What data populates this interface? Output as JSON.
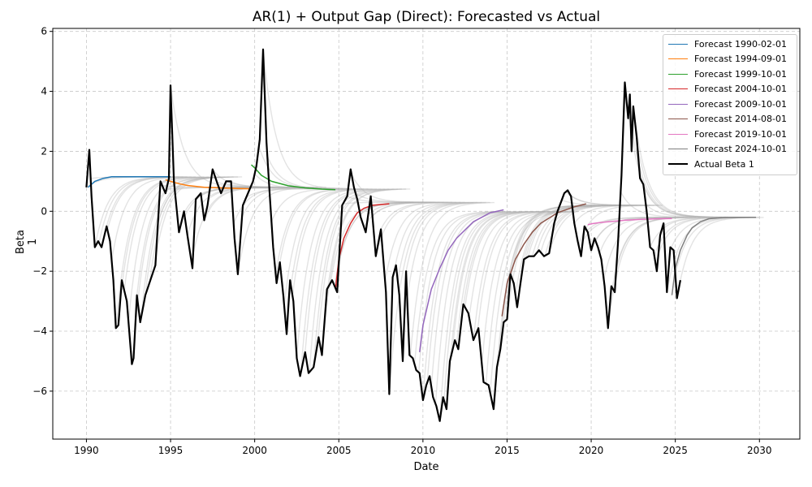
{
  "chart_data": {
    "type": "line",
    "title": "AR(1) + Output Gap (Direct): Forecasted vs Actual",
    "xlabel": "Date",
    "ylabel": "Beta 1",
    "xlim": [
      1988.0,
      2032.4
    ],
    "ylim": [
      -7.6,
      6.1
    ],
    "x_ticks": [
      1990,
      1995,
      2000,
      2005,
      2010,
      2015,
      2020,
      2025,
      2030
    ],
    "y_ticks": [
      -6,
      -4,
      -2,
      0,
      2,
      4,
      6
    ],
    "grid": true,
    "legend_position": "top-right",
    "series": [
      {
        "name": "Actual Beta 1",
        "color": "#000000",
        "x": [
          1990.0,
          1990.17,
          1990.3,
          1990.5,
          1990.7,
          1990.9,
          1991.2,
          1991.4,
          1991.6,
          1991.75,
          1991.9,
          1992.1,
          1992.4,
          1992.7,
          1992.8,
          1993.0,
          1993.2,
          1993.5,
          1993.8,
          1994.1,
          1994.4,
          1994.7,
          1994.9,
          1995.0,
          1995.2,
          1995.5,
          1995.8,
          1996.0,
          1996.3,
          1996.5,
          1996.8,
          1997.0,
          1997.2,
          1997.5,
          1997.8,
          1998.0,
          1998.3,
          1998.6,
          1998.8,
          1999.0,
          1999.3,
          1999.6,
          1999.9,
          2000.1,
          2000.3,
          2000.5,
          2000.7,
          2000.9,
          2001.1,
          2001.3,
          2001.5,
          2001.7,
          2001.9,
          2002.1,
          2002.3,
          2002.5,
          2002.7,
          2003.0,
          2003.2,
          2003.5,
          2003.8,
          2004.0,
          2004.3,
          2004.6,
          2004.9,
          2005.2,
          2005.5,
          2005.7,
          2005.9,
          2006.1,
          2006.3,
          2006.6,
          2006.9,
          2007.2,
          2007.5,
          2007.8,
          2008.0,
          2008.2,
          2008.4,
          2008.6,
          2008.8,
          2009.0,
          2009.2,
          2009.4,
          2009.6,
          2009.8,
          2010.0,
          2010.2,
          2010.4,
          2010.6,
          2010.8,
          2011.0,
          2011.2,
          2011.4,
          2011.6,
          2011.9,
          2012.1,
          2012.4,
          2012.7,
          2013.0,
          2013.3,
          2013.6,
          2013.9,
          2014.2,
          2014.4,
          2014.6,
          2014.8,
          2015.0,
          2015.2,
          2015.4,
          2015.6,
          2015.8,
          2016.0,
          2016.3,
          2016.6,
          2016.9,
          2017.2,
          2017.5,
          2017.8,
          2018.0,
          2018.2,
          2018.4,
          2018.6,
          2018.8,
          2019.0,
          2019.2,
          2019.4,
          2019.6,
          2019.8,
          2020.0,
          2020.2,
          2020.4,
          2020.6,
          2020.8,
          2021.0,
          2021.2,
          2021.4,
          2021.6,
          2021.8,
          2022.0,
          2022.2,
          2022.3,
          2022.4,
          2022.5,
          2022.7,
          2022.9,
          2023.1,
          2023.3,
          2023.5,
          2023.7,
          2023.9,
          2024.1,
          2024.3,
          2024.5,
          2024.7,
          2024.9,
          2025.1,
          2025.3
        ],
        "values": [
          0.8,
          2.05,
          0.5,
          -1.2,
          -1.0,
          -1.2,
          -0.5,
          -1.0,
          -2.3,
          -3.9,
          -3.8,
          -2.3,
          -3.0,
          -5.1,
          -4.9,
          -2.8,
          -3.7,
          -2.8,
          -2.3,
          -1.8,
          1.0,
          0.6,
          1.1,
          4.2,
          1.0,
          -0.7,
          0.0,
          -0.8,
          -1.9,
          0.4,
          0.6,
          -0.3,
          0.2,
          1.4,
          0.9,
          0.6,
          1.0,
          1.0,
          -0.9,
          -2.1,
          0.2,
          0.6,
          1.0,
          1.5,
          2.4,
          5.4,
          2.3,
          0.5,
          -1.2,
          -2.4,
          -1.7,
          -2.8,
          -4.1,
          -2.3,
          -3.0,
          -4.9,
          -5.5,
          -4.7,
          -5.4,
          -5.2,
          -4.2,
          -4.8,
          -2.6,
          -2.3,
          -2.7,
          0.2,
          0.5,
          1.4,
          0.8,
          0.4,
          -0.2,
          -0.7,
          0.5,
          -1.5,
          -0.6,
          -2.7,
          -6.1,
          -2.2,
          -1.8,
          -2.8,
          -5.0,
          -2.0,
          -4.8,
          -4.9,
          -5.3,
          -5.4,
          -6.3,
          -5.8,
          -5.5,
          -6.2,
          -6.5,
          -7.0,
          -6.2,
          -6.6,
          -5.0,
          -4.3,
          -4.6,
          -3.1,
          -3.4,
          -4.3,
          -3.9,
          -5.7,
          -5.8,
          -6.6,
          -5.2,
          -4.6,
          -3.7,
          -3.6,
          -2.1,
          -2.4,
          -3.2,
          -2.4,
          -1.6,
          -1.5,
          -1.5,
          -1.3,
          -1.5,
          -1.4,
          -0.4,
          0.0,
          0.3,
          0.6,
          0.7,
          0.5,
          -0.4,
          -1.0,
          -1.5,
          -0.5,
          -0.7,
          -1.3,
          -0.9,
          -1.2,
          -1.6,
          -2.5,
          -3.9,
          -2.5,
          -2.7,
          -1.0,
          1.2,
          4.3,
          3.1,
          3.9,
          2.0,
          3.5,
          2.5,
          1.1,
          0.9,
          0.0,
          -1.2,
          -1.3,
          -2.0,
          -0.8,
          -0.4,
          -2.7,
          -1.2,
          -1.3,
          -2.9,
          -2.3
        ],
        "linewidth": 2.2
      },
      {
        "name": "Forecast 1990-02-01",
        "color": "#1f77b4",
        "x": [
          1990.1,
          1990.5,
          1991.0,
          1991.5,
          1992.0,
          1993.0,
          1994.0,
          1995.0
        ],
        "values": [
          0.8,
          1.0,
          1.1,
          1.15,
          1.15,
          1.15,
          1.15,
          1.15
        ]
      },
      {
        "name": "Forecast 1994-09-01",
        "color": "#ff7f0e",
        "x": [
          1994.7,
          1995.0,
          1995.5,
          1996.0,
          1997.0,
          1998.0,
          1999.0,
          1999.7
        ],
        "values": [
          1.05,
          1.0,
          0.92,
          0.86,
          0.8,
          0.78,
          0.76,
          0.75
        ]
      },
      {
        "name": "Forecast 1999-10-01",
        "color": "#2ca02c",
        "x": [
          1999.8,
          2000.0,
          2000.4,
          2001.0,
          2002.0,
          2003.0,
          2004.0,
          2004.8
        ],
        "values": [
          1.55,
          1.45,
          1.2,
          1.0,
          0.85,
          0.78,
          0.74,
          0.72
        ]
      },
      {
        "name": "Forecast 2004-10-01",
        "color": "#d62728",
        "x": [
          2004.8,
          2005.0,
          2005.3,
          2005.7,
          2006.1,
          2006.5,
          2007.0,
          2008.0
        ],
        "values": [
          -2.6,
          -1.6,
          -0.9,
          -0.4,
          -0.05,
          0.1,
          0.2,
          0.25
        ]
      },
      {
        "name": "Forecast 2009-10-01",
        "color": "#9467bd",
        "x": [
          2009.8,
          2010.0,
          2010.5,
          2011.0,
          2011.5,
          2012.0,
          2013.0,
          2014.0,
          2014.8
        ],
        "values": [
          -4.7,
          -3.8,
          -2.6,
          -1.9,
          -1.3,
          -0.9,
          -0.35,
          -0.05,
          0.05
        ]
      },
      {
        "name": "Forecast 2014-08-01",
        "color": "#8c564b",
        "x": [
          2014.7,
          2015.0,
          2015.5,
          2016.0,
          2016.5,
          2017.0,
          2018.0,
          2019.0,
          2019.7
        ],
        "values": [
          -3.5,
          -2.4,
          -1.6,
          -1.1,
          -0.7,
          -0.4,
          -0.05,
          0.15,
          0.25
        ]
      },
      {
        "name": "Forecast 2019-10-01",
        "color": "#e377c2",
        "x": [
          2019.8,
          2020.0,
          2020.5,
          2021.0,
          2022.0,
          2023.0,
          2024.0,
          2024.8
        ],
        "values": [
          -0.45,
          -0.42,
          -0.38,
          -0.35,
          -0.3,
          -0.27,
          -0.25,
          -0.24
        ]
      },
      {
        "name": "Forecast 2024-10-01",
        "color": "#7f7f7f",
        "x": [
          2024.8,
          2025.0,
          2025.3,
          2025.7,
          2026.0,
          2026.5,
          2027.0,
          2028.0,
          2029.0,
          2029.8
        ],
        "values": [
          -2.8,
          -1.9,
          -1.3,
          -0.8,
          -0.55,
          -0.35,
          -0.25,
          -0.2,
          -0.2,
          -0.2
        ]
      }
    ]
  },
  "legend": {
    "entries": [
      {
        "label": "Forecast 1990-02-01",
        "color": "#1f77b4",
        "width": 1.5
      },
      {
        "label": "Forecast 1994-09-01",
        "color": "#ff7f0e",
        "width": 1.5
      },
      {
        "label": "Forecast 1999-10-01",
        "color": "#2ca02c",
        "width": 1.5
      },
      {
        "label": "Forecast 2004-10-01",
        "color": "#d62728",
        "width": 1.5
      },
      {
        "label": "Forecast 2009-10-01",
        "color": "#9467bd",
        "width": 1.5
      },
      {
        "label": "Forecast 2014-08-01",
        "color": "#8c564b",
        "width": 1.5
      },
      {
        "label": "Forecast 2019-10-01",
        "color": "#e377c2",
        "width": 1.5
      },
      {
        "label": "Forecast 2024-10-01",
        "color": "#7f7f7f",
        "width": 1.5
      },
      {
        "label": "Actual Beta 1",
        "color": "#000000",
        "width": 2.5
      }
    ]
  },
  "colors": {
    "background_forecasts": "#b0b0b0",
    "grid": "#c8c8c8",
    "axes": "#000000"
  }
}
